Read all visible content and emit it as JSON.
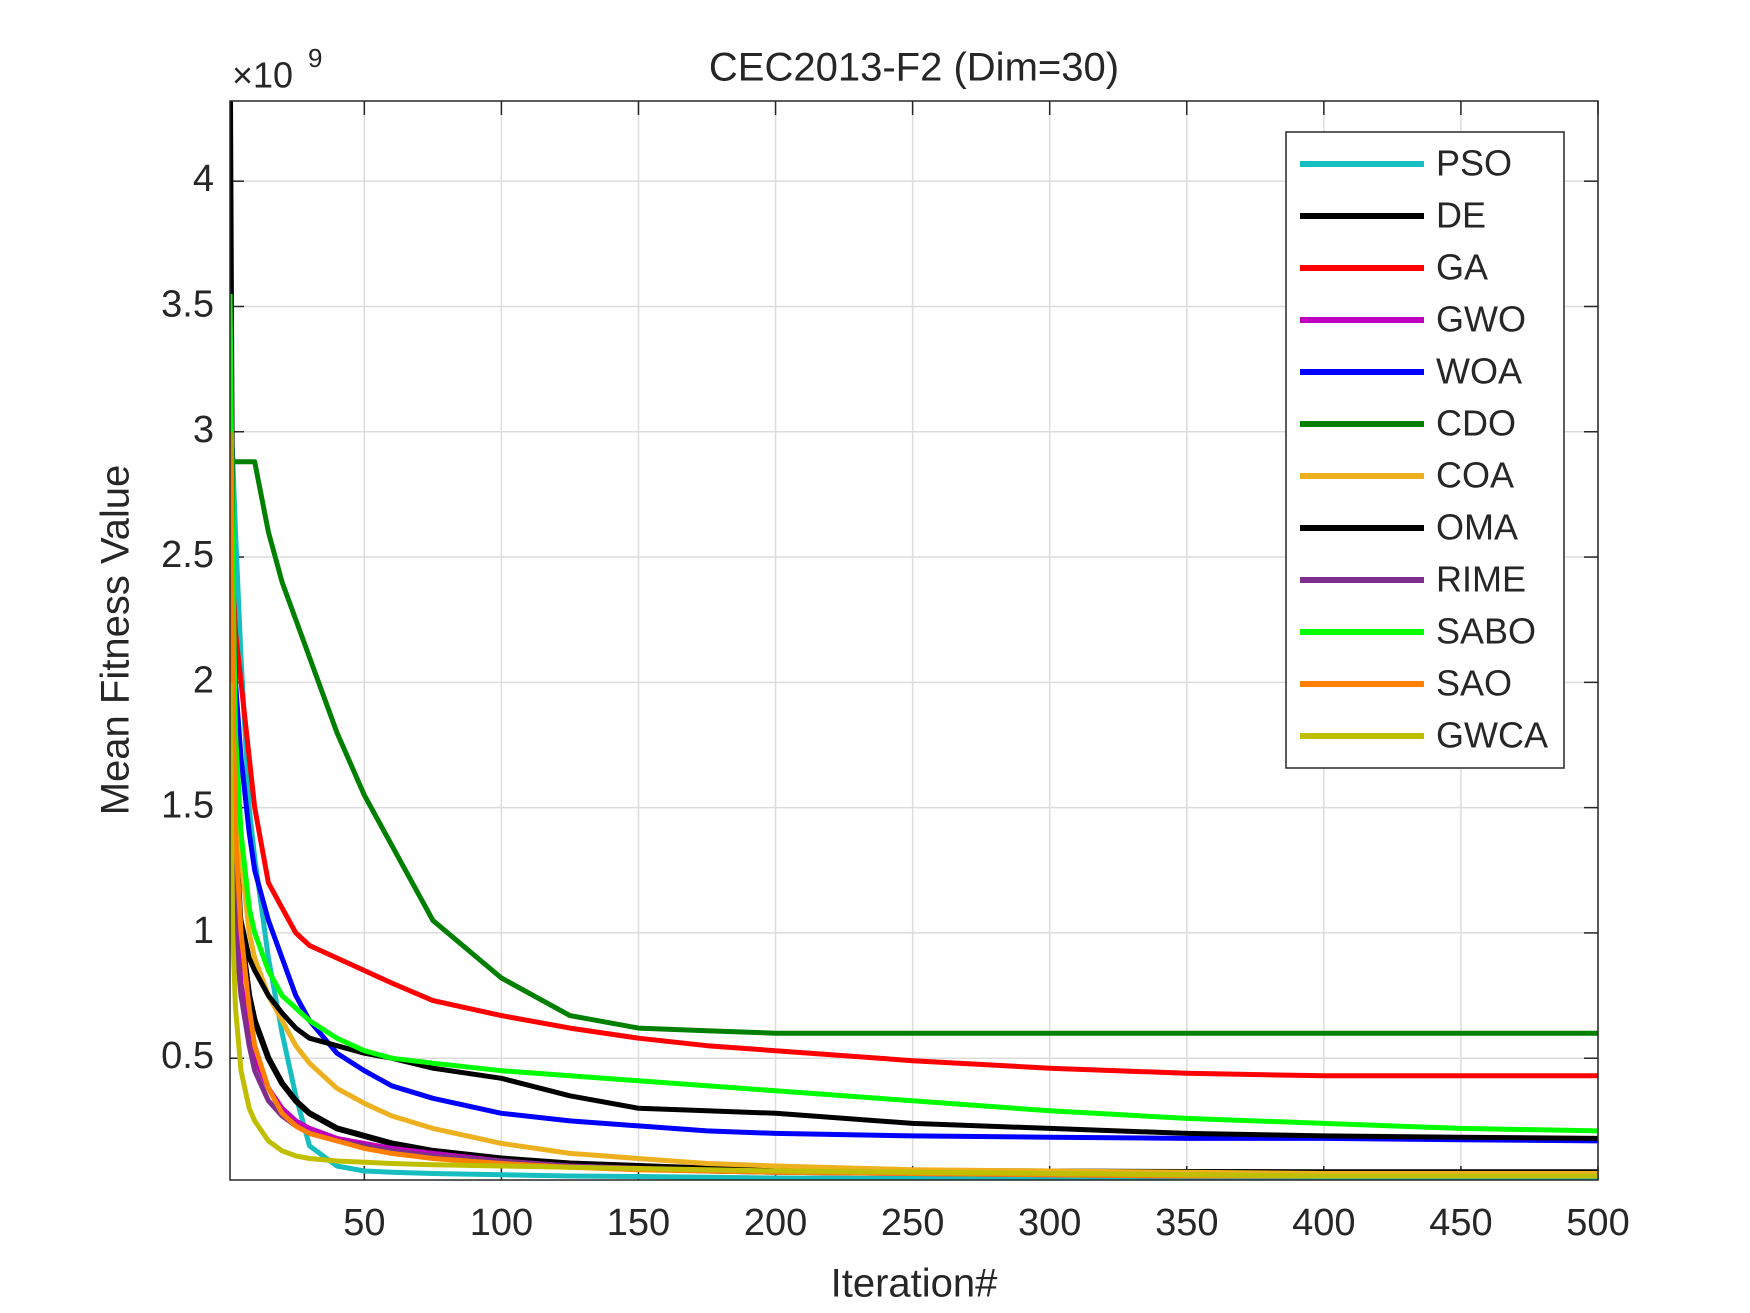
{
  "chart_data": {
    "type": "line",
    "title": "CEC2013-F2 (Dim=30)",
    "x_label": "Iteration#",
    "y_label": "Mean Fitness Value",
    "y_multiplier": {
      "base": "×10",
      "exponent": "9"
    },
    "xlim": [
      1,
      500
    ],
    "ylim": [
      0.014,
      4.32
    ],
    "xticks": [
      50,
      100,
      150,
      200,
      250,
      300,
      350,
      400,
      450,
      500
    ],
    "yticks": [
      0.5,
      1,
      1.5,
      2,
      2.5,
      3,
      3.5,
      4
    ],
    "grid": true,
    "legend": "upper right",
    "x": [
      1,
      2,
      3,
      5,
      8,
      10,
      15,
      20,
      25,
      30,
      40,
      50,
      60,
      75,
      100,
      125,
      150,
      175,
      200,
      250,
      300,
      350,
      400,
      450,
      500
    ],
    "series": [
      {
        "name": "PSO",
        "color": "#17bebf",
        "values": [
          3.1,
          2.9,
          2.6,
          2.1,
          1.5,
          1.3,
          0.9,
          0.6,
          0.35,
          0.15,
          0.07,
          0.05,
          0.045,
          0.04,
          0.035,
          0.03,
          0.028,
          0.025,
          0.022,
          0.02,
          0.018,
          0.017,
          0.016,
          0.015,
          0.015
        ]
      },
      {
        "name": "DE",
        "color": "#000000",
        "values": [
          4.32,
          2.0,
          1.4,
          1.0,
          0.75,
          0.65,
          0.5,
          0.4,
          0.33,
          0.28,
          0.22,
          0.19,
          0.16,
          0.13,
          0.1,
          0.08,
          0.07,
          0.06,
          0.055,
          0.05,
          0.048,
          0.046,
          0.045,
          0.045,
          0.045
        ]
      },
      {
        "name": "GA",
        "color": "#ff0000",
        "values": [
          2.7,
          2.4,
          2.2,
          2.0,
          1.7,
          1.5,
          1.2,
          1.1,
          1.0,
          0.95,
          0.9,
          0.85,
          0.8,
          0.73,
          0.67,
          0.62,
          0.58,
          0.55,
          0.53,
          0.49,
          0.46,
          0.44,
          0.43,
          0.43,
          0.43
        ]
      },
      {
        "name": "GWO",
        "color": "#bf00bf",
        "values": [
          2.5,
          1.5,
          1.1,
          0.8,
          0.6,
          0.5,
          0.38,
          0.3,
          0.25,
          0.22,
          0.18,
          0.16,
          0.14,
          0.12,
          0.09,
          0.07,
          0.06,
          0.05,
          0.045,
          0.04,
          0.035,
          0.03,
          0.03,
          0.03,
          0.03
        ]
      },
      {
        "name": "WOA",
        "color": "#0000ff",
        "values": [
          2.8,
          2.3,
          2.0,
          1.7,
          1.4,
          1.25,
          1.05,
          0.9,
          0.75,
          0.65,
          0.52,
          0.45,
          0.39,
          0.34,
          0.28,
          0.25,
          0.23,
          0.21,
          0.2,
          0.19,
          0.185,
          0.18,
          0.18,
          0.175,
          0.17
        ]
      },
      {
        "name": "CDO",
        "color": "#007f00",
        "values": [
          2.88,
          2.88,
          2.88,
          2.88,
          2.88,
          2.88,
          2.6,
          2.4,
          2.25,
          2.1,
          1.8,
          1.55,
          1.35,
          1.05,
          0.82,
          0.67,
          0.62,
          0.61,
          0.6,
          0.6,
          0.6,
          0.6,
          0.6,
          0.6,
          0.6
        ]
      },
      {
        "name": "COA",
        "color": "#edb120",
        "values": [
          2.8,
          2.0,
          1.6,
          1.3,
          1.0,
          0.9,
          0.75,
          0.65,
          0.55,
          0.48,
          0.38,
          0.32,
          0.27,
          0.22,
          0.16,
          0.12,
          0.1,
          0.08,
          0.07,
          0.055,
          0.05,
          0.045,
          0.04,
          0.04,
          0.04
        ]
      },
      {
        "name": "OMA",
        "color": "#000000",
        "values": [
          1.1,
          1.2,
          1.15,
          1.05,
          0.9,
          0.85,
          0.75,
          0.68,
          0.62,
          0.58,
          0.55,
          0.52,
          0.5,
          0.46,
          0.42,
          0.35,
          0.3,
          0.29,
          0.28,
          0.24,
          0.22,
          0.2,
          0.19,
          0.185,
          0.18
        ]
      },
      {
        "name": "RIME",
        "color": "#7e2f8e",
        "values": [
          2.0,
          1.4,
          1.0,
          0.75,
          0.55,
          0.45,
          0.33,
          0.27,
          0.23,
          0.2,
          0.17,
          0.15,
          0.13,
          0.11,
          0.09,
          0.07,
          0.06,
          0.05,
          0.045,
          0.04,
          0.035,
          0.03,
          0.03,
          0.03,
          0.03
        ]
      },
      {
        "name": "SABO",
        "color": "#00ff00",
        "values": [
          3.55,
          2.5,
          1.8,
          1.4,
          1.1,
          1.0,
          0.85,
          0.75,
          0.7,
          0.65,
          0.58,
          0.53,
          0.5,
          0.48,
          0.45,
          0.43,
          0.41,
          0.39,
          0.37,
          0.33,
          0.29,
          0.26,
          0.24,
          0.22,
          0.21
        ]
      },
      {
        "name": "SAO",
        "color": "#ff8000",
        "values": [
          3.0,
          2.0,
          1.4,
          1.0,
          0.7,
          0.55,
          0.38,
          0.28,
          0.23,
          0.2,
          0.17,
          0.14,
          0.12,
          0.1,
          0.08,
          0.065,
          0.055,
          0.05,
          0.045,
          0.04,
          0.035,
          0.03,
          0.03,
          0.03,
          0.03
        ]
      },
      {
        "name": "GWCA",
        "color": "#bfbf00",
        "values": [
          2.0,
          1.0,
          0.7,
          0.45,
          0.3,
          0.25,
          0.17,
          0.13,
          0.11,
          0.1,
          0.09,
          0.085,
          0.08,
          0.075,
          0.07,
          0.065,
          0.06,
          0.055,
          0.05,
          0.045,
          0.04,
          0.035,
          0.03,
          0.03,
          0.03
        ]
      }
    ]
  }
}
